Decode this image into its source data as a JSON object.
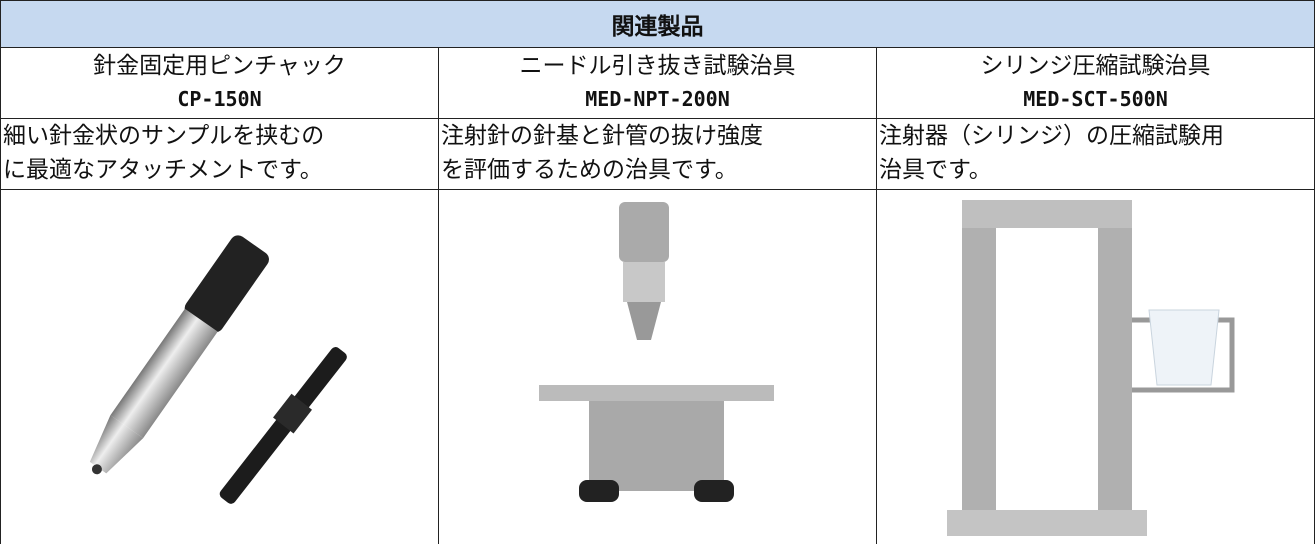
{
  "header": {
    "title": "関連製品"
  },
  "products": [
    {
      "name": "針金固定用ピンチャック",
      "model": "CP-150N",
      "description": [
        "細い針金状のサンプルを挟むの",
        "に最適なアタッチメントです。"
      ]
    },
    {
      "name": "ニードル引き抜き試験治具",
      "model": "MED-NPT-200N",
      "description": [
        "注射針の針基と針管の抜け強度",
        "を評価するための治具です。"
      ]
    },
    {
      "name": "シリンジ圧縮試験治具",
      "model": "MED-SCT-500N",
      "description": [
        "注射器（シリンジ）の圧縮試験用",
        "治具です。"
      ]
    }
  ]
}
